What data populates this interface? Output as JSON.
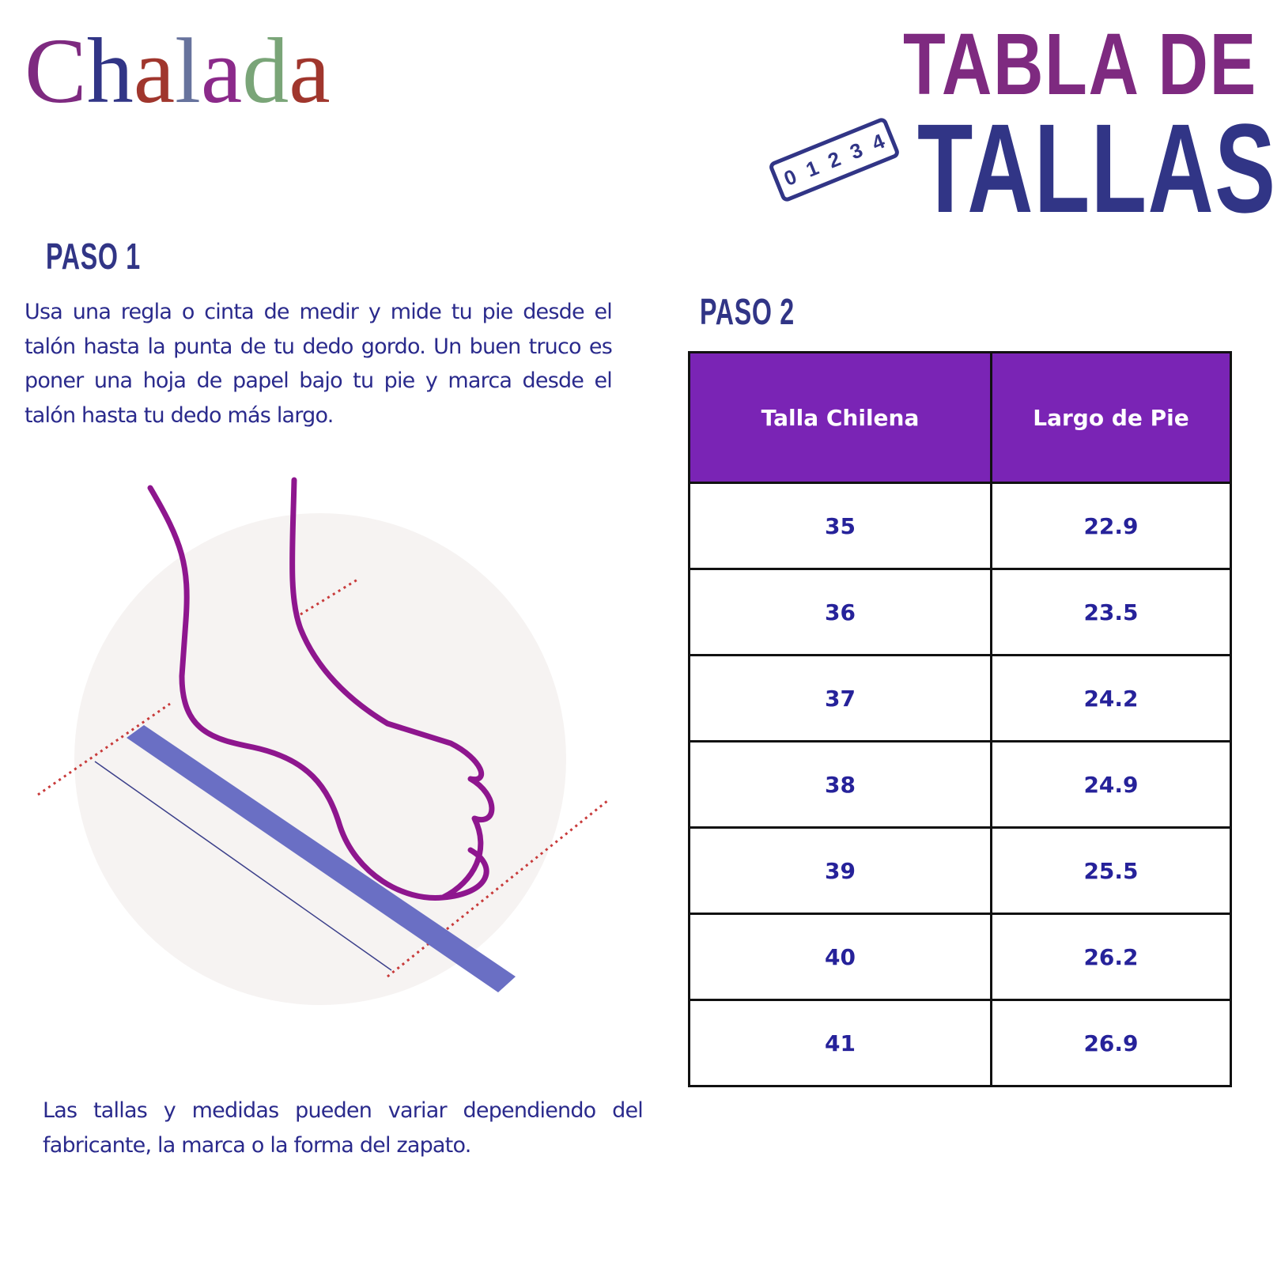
{
  "logo": {
    "text": "Chalada",
    "letters": [
      "C",
      "h",
      "a",
      "l",
      "a",
      "d",
      "a"
    ],
    "colors": [
      "#7e2a80",
      "#313586",
      "#a0362d",
      "#67739d",
      "#8b2a8a",
      "#7aa578",
      "#a0362d"
    ]
  },
  "title": {
    "line1": "TABLA DE",
    "line2": "TALLAS",
    "ruler_digits": [
      "0",
      "1",
      "2",
      "3",
      "4"
    ],
    "color1": "#7e2a80",
    "color2": "#313586"
  },
  "step1": {
    "heading": "PASO 1",
    "text": "Usa una regla o cinta de medir y mide tu pie desde el talón hasta la punta de tu dedo gordo. Un buen truco es poner una hoja de papel bajo tu pie y marca desde el talón hasta tu dedo más largo."
  },
  "step2": {
    "heading": "PASO 2"
  },
  "table": {
    "headers": [
      "Talla Chilena",
      "Largo de Pie"
    ],
    "header_color": "#7a24b5",
    "rows": [
      [
        "35",
        "22.9"
      ],
      [
        "36",
        "23.5"
      ],
      [
        "37",
        "24.2"
      ],
      [
        "38",
        "24.9"
      ],
      [
        "39",
        "25.5"
      ],
      [
        "40",
        "26.2"
      ],
      [
        "41",
        "26.9"
      ]
    ]
  },
  "note": "Las tallas y medidas pueden variar dependiendo del fabricante, la marca o la forma del zapato."
}
